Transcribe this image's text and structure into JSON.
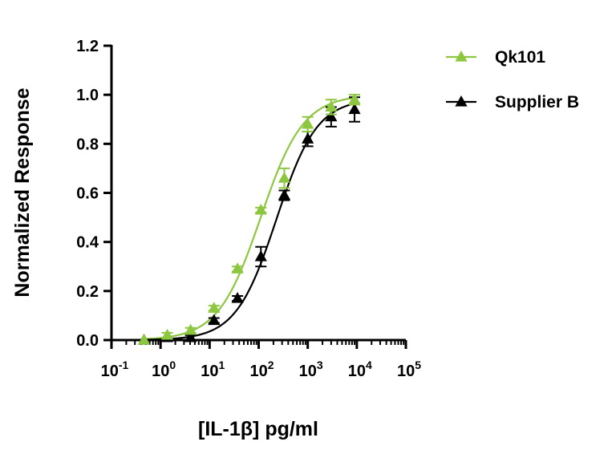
{
  "chart_data": {
    "type": "scatter",
    "xlabel": "[IL-1β] pg/ml",
    "ylabel": "Normalized Response",
    "xscale": "log",
    "xlim": [
      0.1,
      100000
    ],
    "ylim": [
      0,
      1.2
    ],
    "x_ticks": [
      {
        "value": 0.1,
        "base": "10",
        "exp": "-1"
      },
      {
        "value": 1,
        "base": "10",
        "exp": "0"
      },
      {
        "value": 10,
        "base": "10",
        "exp": "1"
      },
      {
        "value": 100,
        "base": "10",
        "exp": "2"
      },
      {
        "value": 1000,
        "base": "10",
        "exp": "3"
      },
      {
        "value": 10000,
        "base": "10",
        "exp": "4"
      },
      {
        "value": 100000,
        "base": "10",
        "exp": "5"
      }
    ],
    "y_ticks": [
      "0.0",
      "0.2",
      "0.4",
      "0.6",
      "0.8",
      "1.0",
      "1.2"
    ],
    "grid": false,
    "legend_position": "top-right",
    "series": [
      {
        "name": "Qk101",
        "color": "#8dc63f",
        "marker": "triangle",
        "x": [
          0.46,
          1.37,
          4.1,
          12.3,
          37,
          111,
          333,
          1000,
          3000,
          9000
        ],
        "y": [
          0.0,
          0.02,
          0.04,
          0.13,
          0.29,
          0.53,
          0.66,
          0.88,
          0.95,
          0.98
        ],
        "err": [
          0.0,
          0.01,
          0.01,
          0.01,
          0.01,
          0.01,
          0.04,
          0.03,
          0.03,
          0.02
        ],
        "fit": {
          "bottom": 0.0,
          "top": 1.0,
          "ec50": 110,
          "hill": 1.0
        }
      },
      {
        "name": "Supplier B",
        "color": "#000000",
        "marker": "triangle",
        "x": [
          0.46,
          1.37,
          4.1,
          12.3,
          37,
          111,
          333,
          1000,
          3000,
          9000
        ],
        "y": [
          0.0,
          0.01,
          0.01,
          0.08,
          0.17,
          0.34,
          0.59,
          0.82,
          0.91,
          0.94
        ],
        "err": [
          0.0,
          0.0,
          0.01,
          0.01,
          0.01,
          0.04,
          0.02,
          0.03,
          0.04,
          0.05
        ],
        "fit": {
          "bottom": 0.0,
          "top": 0.985,
          "ec50": 230,
          "hill": 1.05
        }
      }
    ]
  }
}
